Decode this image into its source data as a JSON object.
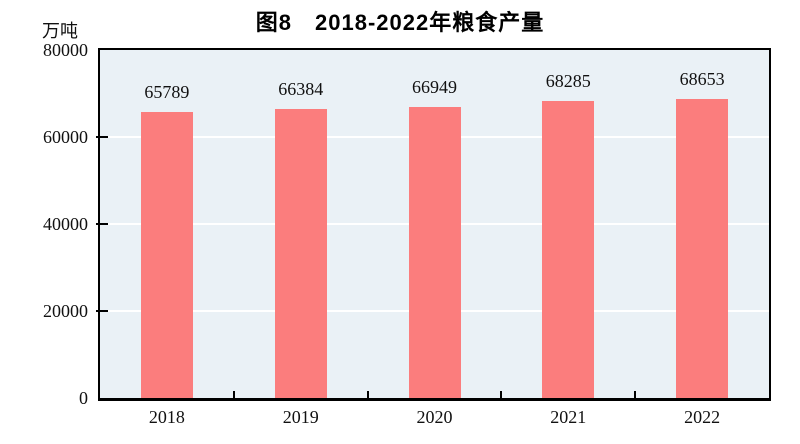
{
  "chart_data": {
    "type": "bar",
    "title": "图8　2018-2022年粮食产量",
    "unit_label": "万吨",
    "categories": [
      "2018",
      "2019",
      "2020",
      "2021",
      "2022"
    ],
    "values": [
      65789,
      66384,
      66949,
      68285,
      68653
    ],
    "value_labels": [
      "65789",
      "66384",
      "66949",
      "68285",
      "68653"
    ],
    "ytick_labels": [
      "0",
      "20000",
      "40000",
      "60000",
      "80000"
    ],
    "yticks": [
      0,
      20000,
      40000,
      60000,
      80000
    ],
    "ylim": [
      0,
      80000
    ],
    "xlabel": "",
    "ylabel": "万吨",
    "grid": "horizontal-white-behind-bars",
    "legend": "none",
    "bar_color": "#FB7D7D",
    "plot_bg": "#EAF1F6",
    "frame_color": "#000000",
    "gridline_color": "#FFFFFF",
    "text_color": "#111111"
  }
}
